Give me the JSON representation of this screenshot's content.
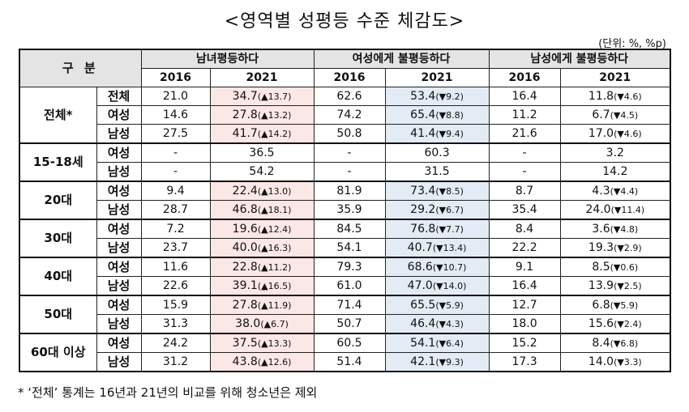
{
  "title": "<영역별 성평등 수준 체감도>",
  "unit": "(단위: %, %p)",
  "header": {
    "corner": "구 분",
    "groups": [
      "남녀평등하다",
      "여성에게 불평등하다",
      "남성에게 불평등하다"
    ],
    "years": [
      "2016",
      "2021",
      "2016",
      "2021",
      "2016",
      "2021"
    ]
  },
  "rows": [
    {
      "group": "전체*",
      "sub": "전체",
      "v": [
        "21.0",
        "34.7",
        "(▲13.7)",
        "62.6",
        "53.4",
        "(▼9.2)",
        "16.4",
        "11.8",
        "(▼4.6)"
      ]
    },
    {
      "group": "전체*",
      "sub": "여성",
      "v": [
        "14.6",
        "27.8",
        "(▲13.2)",
        "74.2",
        "65.4",
        "(▼8.8)",
        "11.2",
        "6.7",
        "(▼4.5)"
      ]
    },
    {
      "group": "전체*",
      "sub": "남성",
      "v": [
        "27.5",
        "41.7",
        "(▲14.2)",
        "50.8",
        "41.4",
        "(▼9.4)",
        "21.6",
        "17.0",
        "(▼4.6)"
      ]
    },
    {
      "group": "15-18세",
      "sub": "여성",
      "v": [
        "-",
        "36.5",
        "",
        "-",
        "60.3",
        "",
        "-",
        "3.2",
        ""
      ]
    },
    {
      "group": "15-18세",
      "sub": "남성",
      "v": [
        "-",
        "54.2",
        "",
        "-",
        "31.5",
        "",
        "-",
        "14.2",
        ""
      ]
    },
    {
      "group": "20대",
      "sub": "여성",
      "v": [
        "9.4",
        "22.4",
        "(▲13.0)",
        "81.9",
        "73.4",
        "(▼8.5)",
        "8.7",
        "4.3",
        "(▼4.4)"
      ]
    },
    {
      "group": "20대",
      "sub": "남성",
      "v": [
        "28.7",
        "46.8",
        "(▲18.1)",
        "35.9",
        "29.2",
        "(▼6.7)",
        "35.4",
        "24.0",
        "(▼11.4)"
      ]
    },
    {
      "group": "30대",
      "sub": "여성",
      "v": [
        "7.2",
        "19.6",
        "(▲12.4)",
        "84.5",
        "76.8",
        "(▼7.7)",
        "8.4",
        "3.6",
        "(▼4.8)"
      ]
    },
    {
      "group": "30대",
      "sub": "남성",
      "v": [
        "23.7",
        "40.0",
        "(▲16.3)",
        "54.1",
        "40.7",
        "(▼13.4)",
        "22.2",
        "19.3",
        "(▼2.9)"
      ]
    },
    {
      "group": "40대",
      "sub": "여성",
      "v": [
        "11.6",
        "22.8",
        "(▲11.2)",
        "79.3",
        "68.6",
        "(▼10.7)",
        "9.1",
        "8.5",
        "(▼0.6)"
      ]
    },
    {
      "group": "40대",
      "sub": "남성",
      "v": [
        "22.6",
        "39.1",
        "(▲16.5)",
        "61.0",
        "47.0",
        "(▼14.0)",
        "16.4",
        "13.9",
        "(▼2.5)"
      ]
    },
    {
      "group": "50대",
      "sub": "여성",
      "v": [
        "15.9",
        "27.8",
        "(▲11.9)",
        "71.4",
        "65.5",
        "(▼5.9)",
        "12.7",
        "6.8",
        "(▼5.9)"
      ]
    },
    {
      "group": "50대",
      "sub": "남성",
      "v": [
        "31.3",
        "38.0",
        "(▲6.7)",
        "50.7",
        "46.4",
        "(▼4.3)",
        "18.0",
        "15.6",
        "(▼2.4)"
      ]
    },
    {
      "group": "60대 이상",
      "sub": "여성",
      "v": [
        "24.2",
        "37.5",
        "(▲13.3)",
        "60.5",
        "54.1",
        "(▼6.4)",
        "15.2",
        "8.4",
        "(▼6.8)"
      ]
    },
    {
      "group": "60대 이상",
      "sub": "남성",
      "v": [
        "31.2",
        "43.8",
        "(▲12.6)",
        "51.4",
        "42.1",
        "(▼9.3)",
        "17.3",
        "14.0",
        "(▼3.3)"
      ]
    }
  ],
  "footnote": "* ‘전체’ 통계는 16년과 21년의 비교를 위해 청소년은 제외",
  "colors": {
    "highlight_equal": "#fbe7e5",
    "highlight_women": "#e3ebf5",
    "header_bg": "#e4e4e4"
  }
}
